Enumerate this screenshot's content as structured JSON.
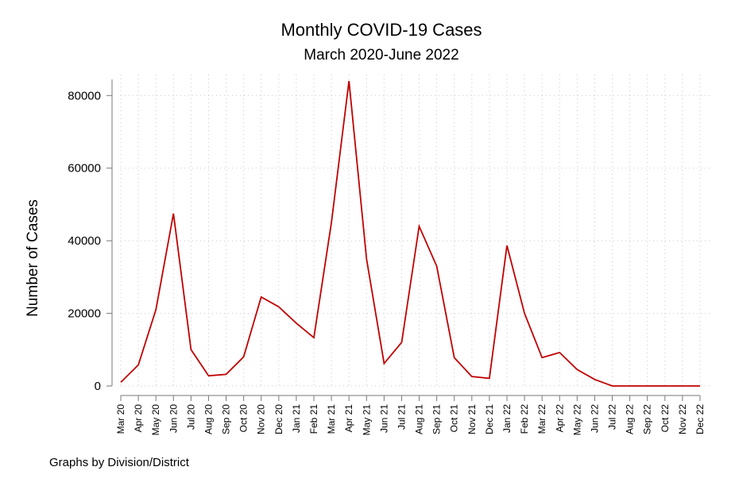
{
  "chart_data": {
    "type": "line",
    "title": "Monthly COVID-19 Cases",
    "subtitle": "March 2020-June 2022",
    "xlabel": "",
    "ylabel": "Number of Cases",
    "ylim": [
      0,
      84000
    ],
    "yticks": [
      0,
      20000,
      40000,
      60000,
      80000
    ],
    "grid": true,
    "categories": [
      "Mar 20",
      "Apr 20",
      "May 20",
      "Jun 20",
      "Jul 20",
      "Aug 20",
      "Sep 20",
      "Oct 20",
      "Nov 20",
      "Dec 20",
      "Jan 21",
      "Feb 21",
      "Mar 21",
      "Apr 21",
      "May 21",
      "Jun 21",
      "Jul 21",
      "Aug 21",
      "Sep 21",
      "Oct 21",
      "Nov 21",
      "Dec 21",
      "Jan 22",
      "Feb 22",
      "Mar 22",
      "Apr 22",
      "May 22",
      "Jun 22",
      "Jul 22",
      "Aug 22",
      "Sep 22",
      "Oct 22",
      "Nov 22",
      "Dec 22"
    ],
    "series": [
      {
        "color": "#c00000",
        "values": [
          1000,
          5800,
          21000,
          47500,
          10000,
          2800,
          3200,
          8000,
          24500,
          21800,
          17300,
          13300,
          45000,
          84000,
          35000,
          6200,
          12000,
          44000,
          33000,
          7800,
          2600,
          2100,
          38700,
          20000,
          7800,
          9200,
          4500,
          1800,
          0,
          0,
          0,
          0,
          0,
          0
        ]
      }
    ],
    "note": "Graphs by Division/District"
  }
}
